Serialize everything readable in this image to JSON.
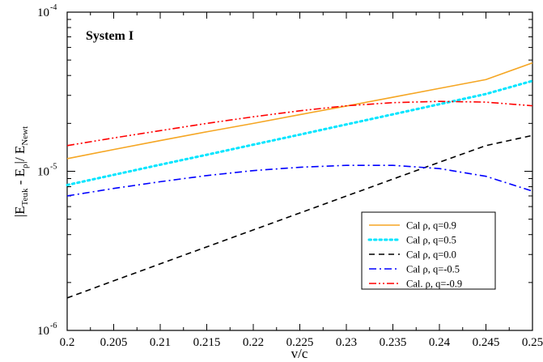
{
  "chart_data": {
    "type": "line",
    "title": "System I",
    "xlabel": "v/c",
    "ylabel": {
      "prefix": "|",
      "e1": "E",
      "sub1": "Teuk",
      "minus": " - ",
      "e2": "E",
      "sub2": "ρ",
      "sep": "|/ ",
      "e3": "E",
      "sub3": "Newt"
    },
    "xlim": [
      0.2,
      0.25
    ],
    "ylim": [
      1e-06,
      0.0001
    ],
    "yscale": "log",
    "x_ticks": [
      "0.2",
      "0.205",
      "0.21",
      "0.215",
      "0.22",
      "0.225",
      "0.23",
      "0.235",
      "0.24",
      "0.245",
      "0.25"
    ],
    "y_ticks": [
      {
        "base": "10",
        "exp": "-6",
        "value": 1e-06
      },
      {
        "base": "10",
        "exp": "-5",
        "value": 1e-05
      },
      {
        "base": "10",
        "exp": "-4",
        "value": 0.0001
      }
    ],
    "legend_position": "bottom-right",
    "x": [
      0.2,
      0.205,
      0.21,
      0.215,
      0.22,
      0.225,
      0.23,
      0.235,
      0.24,
      0.245,
      0.25
    ],
    "series": [
      {
        "name": "Cal ρ, q=0.9",
        "color": "#f5a623",
        "dash": "solid",
        "values": [
          1.2e-05,
          1.37e-05,
          1.56e-05,
          1.77e-05,
          2e-05,
          2.27e-05,
          2.57e-05,
          2.92e-05,
          3.32e-05,
          3.77e-05,
          4.8e-05
        ]
      },
      {
        "name": "Cal ρ, q=0.5",
        "color": "#00e5ff",
        "dash": "dot",
        "values": [
          8.2e-06,
          9.5e-06,
          1.1e-05,
          1.27e-05,
          1.47e-05,
          1.7e-05,
          1.97e-05,
          2.28e-05,
          2.64e-05,
          3.06e-05,
          3.7e-05
        ]
      },
      {
        "name": "Cal ρ, q=0.0",
        "color": "#000000",
        "dash": "dash",
        "values": [
          1.6e-06,
          2.05e-06,
          2.62e-06,
          3.35e-06,
          4.28e-06,
          5.47e-06,
          6.99e-06,
          8.93e-06,
          1.14e-05,
          1.45e-05,
          1.68e-05
        ]
      },
      {
        "name": "Cal ρ, q=-0.5",
        "color": "#0000ff",
        "dash": "dashdot",
        "values": [
          7e-06,
          7.8e-06,
          8.6e-06,
          9.4e-06,
          1.01e-05,
          1.06e-05,
          1.09e-05,
          1.09e-05,
          1.04e-05,
          9.3e-06,
          7.5e-06
        ]
      },
      {
        "name": "Cal. ρ, q=-0.9",
        "color": "#ff0000",
        "dash": "dashdotdot",
        "values": [
          1.45e-05,
          1.62e-05,
          1.8e-05,
          2e-05,
          2.2e-05,
          2.4e-05,
          2.58e-05,
          2.7e-05,
          2.75e-05,
          2.72e-05,
          2.58e-05
        ]
      }
    ]
  }
}
